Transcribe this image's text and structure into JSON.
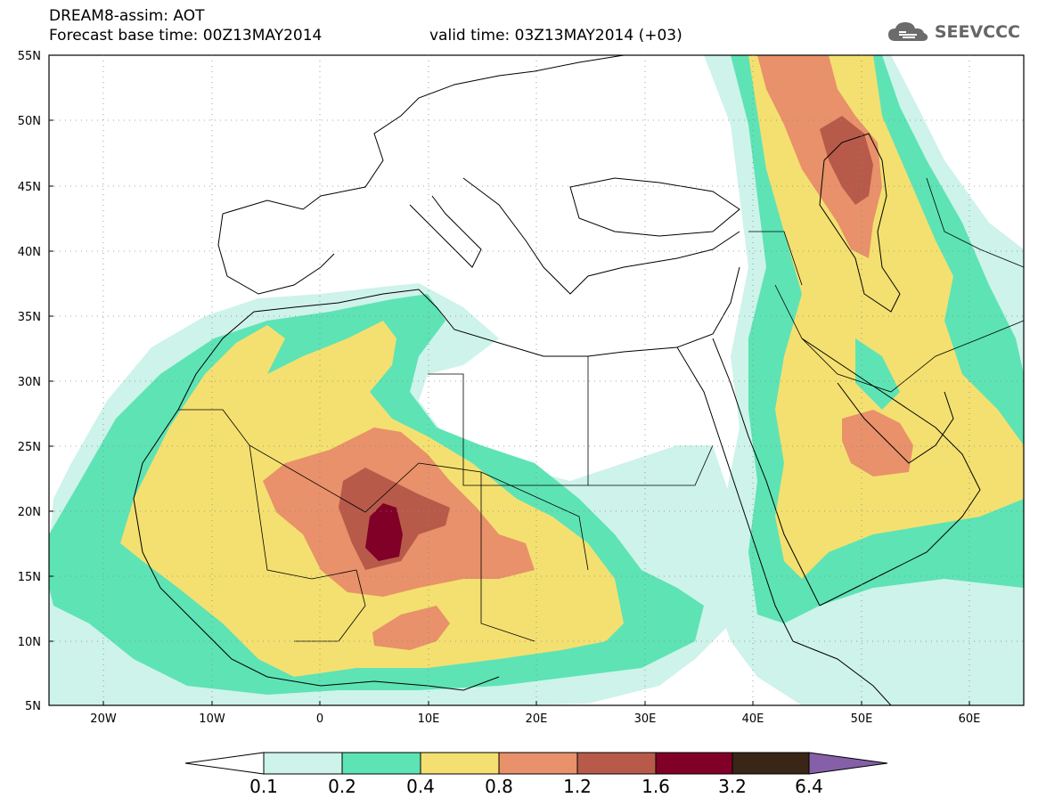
{
  "header": {
    "model_title": "DREAM8-assim: AOT",
    "base_time": "Forecast base time: 00Z13MAY2014",
    "valid_time": "valid time: 03Z13MAY2014 (+03)"
  },
  "brand": {
    "name": "SEEVCCC",
    "icon": "cloud-icon"
  },
  "map": {
    "lat_labels": [
      "55N",
      "50N",
      "45N",
      "40N",
      "35N",
      "30N",
      "25N",
      "20N",
      "15N",
      "10N",
      "5N"
    ],
    "lon_labels": [
      "20W",
      "10W",
      "0",
      "10E",
      "20E",
      "30E",
      "40E",
      "50E",
      "60E"
    ]
  },
  "colorbar": {
    "labels": [
      "0.1",
      "0.2",
      "0.4",
      "0.8",
      "1.2",
      "1.6",
      "3.2",
      "6.4"
    ],
    "colors": [
      "#ffffff",
      "#cdf3ea",
      "#5ee3b5",
      "#f4e070",
      "#e8916a",
      "#b85a4a",
      "#800028",
      "#3a2616",
      "#8560a8"
    ]
  },
  "colors": {
    "c01": "#cdf3ea",
    "c02": "#5ee3b5",
    "c04": "#f4e070",
    "c08": "#e8916a",
    "c12": "#b85a4a",
    "c16": "#800028"
  }
}
